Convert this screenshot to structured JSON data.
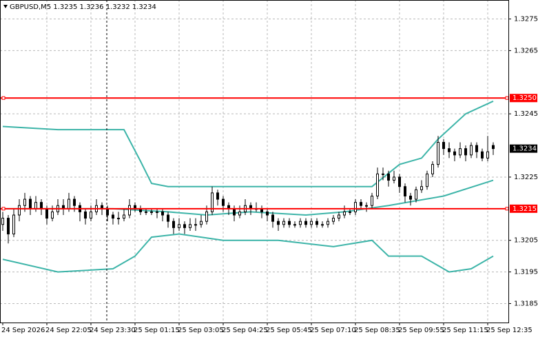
{
  "chart_data": {
    "type": "candlestick",
    "title": "GBPUSD,M5  1.3235 1.3236 1.3232 1.3234",
    "ylim": [
      1.3179,
      1.3281
    ],
    "yticks": [
      1.3275,
      1.3265,
      1.3245,
      1.3225,
      1.3205,
      1.3195,
      1.3185
    ],
    "grid": true,
    "up_color": "#ffffff",
    "down_color": "#000000",
    "levels": [
      {
        "value": 1.325,
        "label": "1.3250"
      },
      1.3215
    ],
    "level_color": "#ff0000",
    "last": 1.3234,
    "categories": [
      "24 Sep 2026",
      null,
      null,
      null,
      null,
      null,
      null,
      null,
      "24 Sep 22:05",
      null,
      null,
      null,
      null,
      null,
      null,
      null,
      "24 Sep 23:30",
      null,
      null,
      null,
      null,
      null,
      null,
      null,
      "25 Sep 01:15",
      null,
      null,
      null,
      null,
      null,
      null,
      null,
      "25 Sep 03:05",
      null,
      null,
      null,
      null,
      null,
      null,
      null,
      "25 Sep 04:25",
      null,
      null,
      null,
      null,
      null,
      null,
      null,
      "25 Sep 05:45",
      null,
      null,
      null,
      null,
      null,
      null,
      null,
      "25 Sep 07:10",
      null,
      null,
      null,
      null,
      null,
      null,
      null,
      "25 Sep 08:35",
      null,
      null,
      null,
      null,
      null,
      null,
      null,
      "25 Sep 09:55",
      null,
      null,
      null,
      null,
      null,
      null,
      null,
      "25 Sep 11:15",
      null,
      null,
      null,
      null,
      null,
      null,
      null,
      "25 Sep 12:35",
      null
    ],
    "ohlc": [
      [
        1.321,
        1.3214,
        1.3208,
        1.3212
      ],
      [
        1.3212,
        1.3213,
        1.3204,
        1.3207
      ],
      [
        1.3207,
        1.3215,
        1.3206,
        1.3213
      ],
      [
        1.3213,
        1.3218,
        1.3211,
        1.3216
      ],
      [
        1.3216,
        1.322,
        1.3214,
        1.3218
      ],
      [
        1.3218,
        1.3219,
        1.3213,
        1.3215
      ],
      [
        1.3215,
        1.3219,
        1.3214,
        1.3217
      ],
      [
        1.3217,
        1.3218,
        1.3213,
        1.3215
      ],
      [
        1.3215,
        1.3216,
        1.321,
        1.3212
      ],
      [
        1.3212,
        1.3216,
        1.3211,
        1.3214
      ],
      [
        1.3214,
        1.3218,
        1.3213,
        1.3216
      ],
      [
        1.3216,
        1.3218,
        1.3213,
        1.3215
      ],
      [
        1.3215,
        1.322,
        1.3214,
        1.3218
      ],
      [
        1.3218,
        1.3219,
        1.3214,
        1.3216
      ],
      [
        1.3216,
        1.3217,
        1.3211,
        1.3214
      ],
      [
        1.3214,
        1.3215,
        1.321,
        1.3212
      ],
      [
        1.3212,
        1.3216,
        1.3211,
        1.3214
      ],
      [
        1.3214,
        1.3218,
        1.3213,
        1.3216
      ],
      [
        1.3216,
        1.3217,
        1.3213,
        1.3215
      ],
      [
        1.3215,
        1.3216,
        1.3211,
        1.3213
      ],
      [
        1.3213,
        1.3214,
        1.321,
        1.3212
      ],
      [
        1.3212,
        1.3214,
        1.321,
        1.3212
      ],
      [
        1.3212,
        1.3215,
        1.3211,
        1.3213
      ],
      [
        1.3213,
        1.3218,
        1.3212,
        1.3216
      ],
      [
        1.3216,
        1.3217,
        1.3214,
        1.3215
      ],
      [
        1.3215,
        1.3216,
        1.3213,
        1.3214
      ],
      [
        1.3214,
        1.3215,
        1.3213,
        1.3214
      ],
      [
        1.3214,
        1.3215,
        1.3213,
        1.3214
      ],
      [
        1.3214,
        1.3215,
        1.3212,
        1.3214
      ],
      [
        1.3214,
        1.3215,
        1.3211,
        1.3213
      ],
      [
        1.3213,
        1.3214,
        1.3209,
        1.3211
      ],
      [
        1.3211,
        1.3212,
        1.3207,
        1.3209
      ],
      [
        1.3209,
        1.3212,
        1.3208,
        1.321
      ],
      [
        1.321,
        1.3211,
        1.3207,
        1.3209
      ],
      [
        1.3209,
        1.3212,
        1.3208,
        1.321
      ],
      [
        1.321,
        1.3212,
        1.3208,
        1.321
      ],
      [
        1.321,
        1.3213,
        1.3209,
        1.3211
      ],
      [
        1.3211,
        1.3216,
        1.321,
        1.3214
      ],
      [
        1.3214,
        1.3222,
        1.3213,
        1.322
      ],
      [
        1.322,
        1.3221,
        1.3216,
        1.3218
      ],
      [
        1.3218,
        1.3219,
        1.3214,
        1.3216
      ],
      [
        1.3216,
        1.3217,
        1.3213,
        1.3215
      ],
      [
        1.3215,
        1.3216,
        1.3211,
        1.3213
      ],
      [
        1.3213,
        1.3216,
        1.3212,
        1.3214
      ],
      [
        1.3214,
        1.3218,
        1.3213,
        1.3216
      ],
      [
        1.3216,
        1.3217,
        1.3213,
        1.3215
      ],
      [
        1.3215,
        1.3217,
        1.3214,
        1.3215
      ],
      [
        1.3215,
        1.3216,
        1.3212,
        1.3214
      ],
      [
        1.3214,
        1.3215,
        1.3211,
        1.3213
      ],
      [
        1.3213,
        1.3214,
        1.3209,
        1.3211
      ],
      [
        1.3211,
        1.3212,
        1.3208,
        1.321
      ],
      [
        1.321,
        1.3212,
        1.3209,
        1.3211
      ],
      [
        1.3211,
        1.3212,
        1.3209,
        1.321
      ],
      [
        1.321,
        1.3211,
        1.3209,
        1.321
      ],
      [
        1.321,
        1.3212,
        1.3209,
        1.3211
      ],
      [
        1.3211,
        1.3212,
        1.3209,
        1.321
      ],
      [
        1.321,
        1.3212,
        1.3209,
        1.3211
      ],
      [
        1.3211,
        1.3212,
        1.3209,
        1.321
      ],
      [
        1.321,
        1.3211,
        1.3209,
        1.321
      ],
      [
        1.321,
        1.3212,
        1.3209,
        1.3211
      ],
      [
        1.3211,
        1.3213,
        1.321,
        1.3212
      ],
      [
        1.3212,
        1.3214,
        1.3211,
        1.3213
      ],
      [
        1.3213,
        1.3216,
        1.3212,
        1.3214
      ],
      [
        1.3214,
        1.3215,
        1.3213,
        1.3214
      ],
      [
        1.3214,
        1.3218,
        1.3213,
        1.3217
      ],
      [
        1.3217,
        1.3218,
        1.3215,
        1.3216
      ],
      [
        1.3216,
        1.3217,
        1.3214,
        1.3216
      ],
      [
        1.3216,
        1.322,
        1.3215,
        1.3219
      ],
      [
        1.3219,
        1.3228,
        1.3218,
        1.3226
      ],
      [
        1.3226,
        1.3228,
        1.3224,
        1.3226
      ],
      [
        1.3226,
        1.3227,
        1.3222,
        1.3224
      ],
      [
        1.3224,
        1.3227,
        1.3223,
        1.3225
      ],
      [
        1.3225,
        1.3226,
        1.322,
        1.3222
      ],
      [
        1.3222,
        1.3223,
        1.3217,
        1.3219
      ],
      [
        1.3219,
        1.322,
        1.3216,
        1.3218
      ],
      [
        1.3218,
        1.3222,
        1.3217,
        1.3221
      ],
      [
        1.3221,
        1.3224,
        1.322,
        1.3222
      ],
      [
        1.3222,
        1.3227,
        1.3221,
        1.3226
      ],
      [
        1.3226,
        1.323,
        1.3225,
        1.3229
      ],
      [
        1.3229,
        1.3238,
        1.3228,
        1.3236
      ],
      [
        1.3236,
        1.3237,
        1.3232,
        1.3234
      ],
      [
        1.3234,
        1.3236,
        1.3231,
        1.3233
      ],
      [
        1.3233,
        1.3234,
        1.323,
        1.3232
      ],
      [
        1.3232,
        1.3236,
        1.3231,
        1.3234
      ],
      [
        1.3234,
        1.3235,
        1.323,
        1.3232
      ],
      [
        1.3232,
        1.3236,
        1.3231,
        1.3235
      ],
      [
        1.3235,
        1.3236,
        1.3231,
        1.3233
      ],
      [
        1.3233,
        1.3234,
        1.323,
        1.3231
      ],
      [
        1.3231,
        1.3238,
        1.323,
        1.3233
      ],
      [
        1.3235,
        1.3236,
        1.3232,
        1.3234
      ]
    ],
    "bands": [
      {
        "color": "#3cb4a8",
        "x": [
          0,
          10,
          22,
          25,
          27,
          30,
          38,
          45,
          67,
          72,
          76,
          79,
          84,
          89
        ],
        "values": [
          1.3241,
          1.324,
          1.324,
          1.323,
          1.3223,
          1.3222,
          1.3222,
          1.3222,
          1.3222,
          1.3229,
          1.3231,
          1.3237,
          1.3245,
          1.3249
        ]
      },
      {
        "color": "#3cb4a8",
        "x": [
          0,
          20,
          30,
          37,
          45,
          55,
          62,
          70,
          80,
          89
        ],
        "values": [
          1.3215,
          1.3215,
          1.3214,
          1.3213,
          1.3214,
          1.3213,
          1.3214,
          1.3216,
          1.3219,
          1.3224
        ]
      },
      {
        "color": "#3cb4a8",
        "x": [
          0,
          10,
          20,
          24,
          27,
          32,
          40,
          50,
          60,
          67,
          70,
          76,
          81,
          85,
          89
        ],
        "values": [
          1.3199,
          1.3195,
          1.3196,
          1.32,
          1.3206,
          1.3207,
          1.3205,
          1.3205,
          1.3203,
          1.3205,
          1.32,
          1.32,
          1.3195,
          1.3196,
          1.32
        ]
      }
    ]
  }
}
